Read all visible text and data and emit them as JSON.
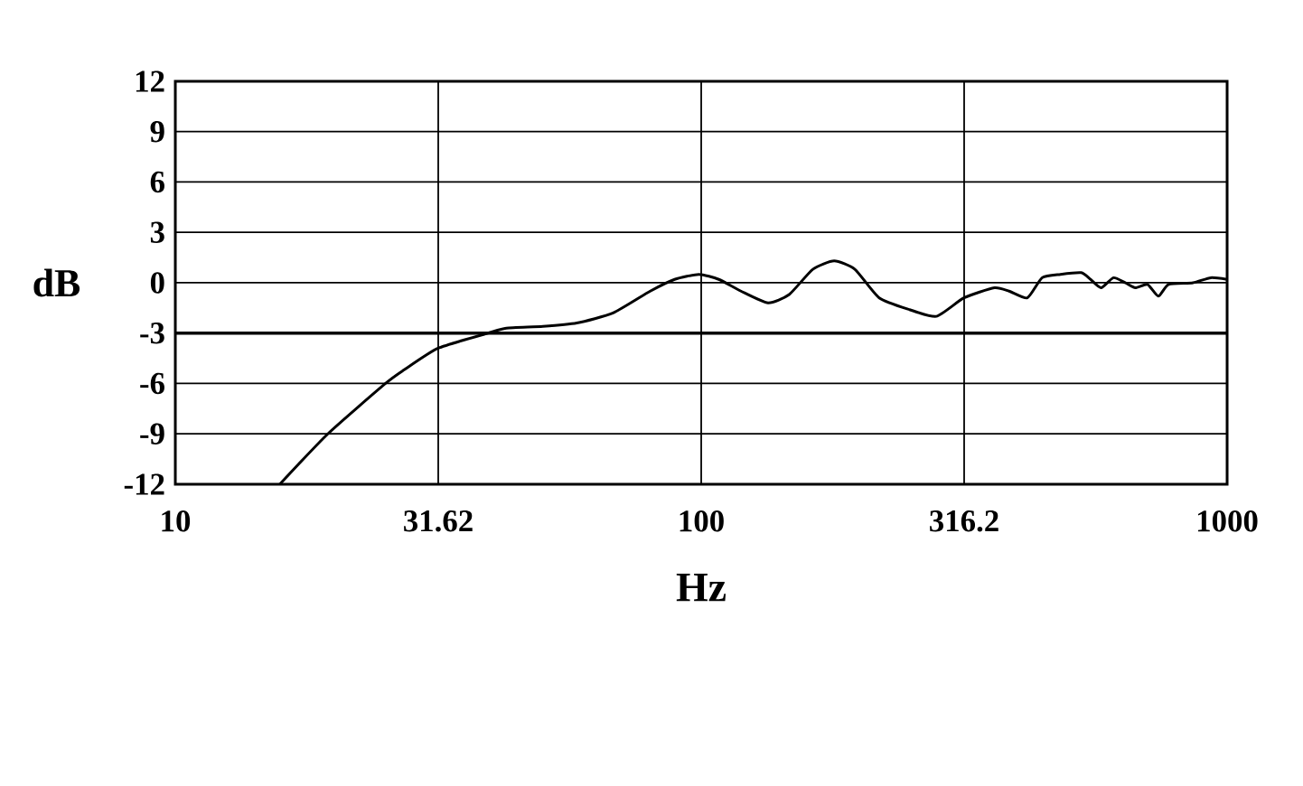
{
  "chart_data": {
    "type": "line",
    "xlabel": "Hz",
    "ylabel": "dB",
    "x": [
      15.8,
      19.5,
      25.1,
      27.2,
      31.6,
      39.3,
      42.6,
      50,
      58,
      68,
      80,
      89,
      99,
      108,
      119,
      134,
      147,
      163,
      179,
      196,
      218,
      249,
      280,
      316,
      361,
      385,
      417,
      445,
      482,
      528,
      550,
      576,
      608,
      640,
      669,
      706,
      740,
      774,
      861,
      931,
      1000
    ],
    "values": [
      -12,
      -9,
      -6,
      -5.2,
      -3.9,
      -3.0,
      -2.7,
      -2.6,
      -2.4,
      -1.8,
      -0.5,
      0.2,
      0.5,
      0.2,
      -0.5,
      -1.2,
      -0.7,
      0.8,
      1.3,
      0.8,
      -0.9,
      -1.6,
      -2.0,
      -0.9,
      -0.3,
      -0.5,
      -0.9,
      0.3,
      0.5,
      0.6,
      0.2,
      -0.3,
      0.3,
      0.0,
      -0.3,
      -0.1,
      -0.8,
      -0.1,
      0.0,
      0.3,
      0.2
    ],
    "color": "#000000",
    "log": "x",
    "xlim": [
      10,
      1000
    ],
    "ylim": [
      -12,
      12
    ],
    "xticks": [
      10,
      31.62,
      100,
      316.2,
      1000
    ],
    "yticks": [
      -12,
      -9,
      -6,
      -3,
      0,
      3,
      6,
      9,
      12
    ],
    "grid": true,
    "marker": "none",
    "line_style": "solid",
    "ref_lines": [
      {
        "axis": "y",
        "value": -3
      }
    ]
  }
}
